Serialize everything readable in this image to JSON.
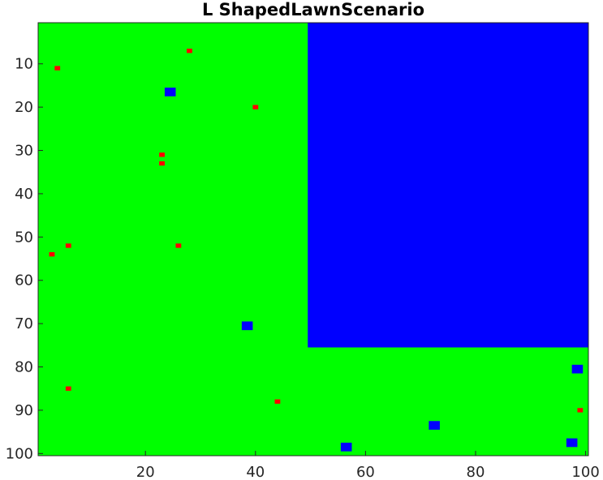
{
  "chart_data": {
    "type": "heatmap",
    "title": "L ShapedLawnScenario",
    "xlabel": "",
    "ylabel": "",
    "xlim": [
      0.5,
      100.5
    ],
    "ylim": [
      0.5,
      100.5
    ],
    "y_reversed": true,
    "x_ticks": [
      20,
      40,
      60,
      80,
      100
    ],
    "y_ticks": [
      10,
      20,
      30,
      40,
      50,
      60,
      70,
      80,
      90,
      100
    ],
    "grid": false,
    "legend": "none",
    "colors": {
      "lawn": "#00ff00",
      "blocked": "#0000ff",
      "obstacle": "#0000ff",
      "marker": "#ff0000"
    },
    "background_region": {
      "label": "lawn",
      "x_range": [
        1,
        100
      ],
      "y_range": [
        1,
        100
      ]
    },
    "blocked_region": {
      "label": "blocked",
      "x_range": [
        50,
        100
      ],
      "y_range": [
        1,
        75
      ]
    },
    "blue_squares": [
      {
        "x": 24.5,
        "y": 16.5
      },
      {
        "x": 38.5,
        "y": 70.5
      },
      {
        "x": 56.5,
        "y": 98.5
      },
      {
        "x": 72.5,
        "y": 93.5
      },
      {
        "x": 97.5,
        "y": 97.5
      },
      {
        "x": 98.5,
        "y": 80.5
      }
    ],
    "red_cells": [
      {
        "x": 4,
        "y": 11
      },
      {
        "x": 28,
        "y": 7
      },
      {
        "x": 40,
        "y": 20
      },
      {
        "x": 23,
        "y": 31
      },
      {
        "x": 23,
        "y": 33
      },
      {
        "x": 6,
        "y": 52
      },
      {
        "x": 26,
        "y": 52
      },
      {
        "x": 3,
        "y": 54
      },
      {
        "x": 6,
        "y": 85
      },
      {
        "x": 44,
        "y": 88
      },
      {
        "x": 99,
        "y": 90
      }
    ]
  }
}
